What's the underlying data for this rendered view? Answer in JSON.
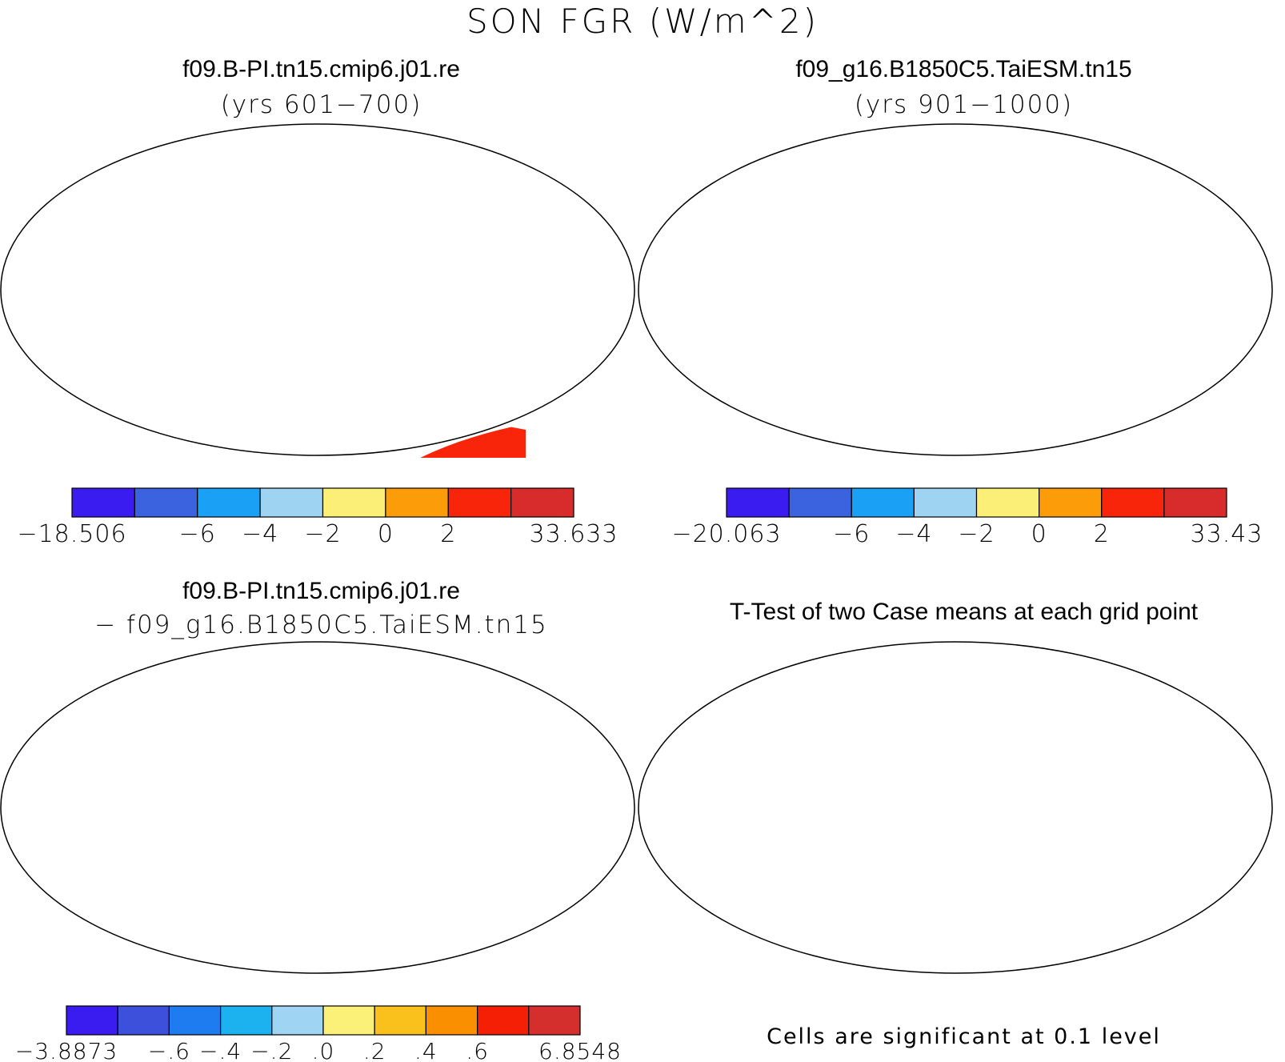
{
  "figure": {
    "title": "SON FGR (W/m^2)"
  },
  "panels": [
    {
      "id": "case1",
      "title": "f09.B-PI.tn15.cmip6.j01.re",
      "subtitle": "(yrs 601−700)",
      "colorbar": {
        "colors": [
          "#3b1cf0",
          "#3c63df",
          "#1aa0f5",
          "#9ed3f2",
          "#fbef78",
          "#fb9c08",
          "#f8250b",
          "#d72c2b"
        ],
        "labels": [
          "−18.506",
          "",
          "−6",
          "−4",
          "−2",
          "0",
          "2",
          "",
          "33.633"
        ]
      }
    },
    {
      "id": "case2",
      "title": "f09_g16.B1850C5.TaiESM.tn15",
      "subtitle": "(yrs 901−1000)",
      "colorbar": {
        "colors": [
          "#3b1cf0",
          "#3c63df",
          "#1aa0f5",
          "#9ed3f2",
          "#fbef78",
          "#fb9c08",
          "#f8250b",
          "#d72c2b"
        ],
        "labels": [
          "−20.063",
          "",
          "−6",
          "−4",
          "−2",
          "0",
          "2",
          "",
          "33.43"
        ]
      }
    },
    {
      "id": "difference",
      "title": "f09.B-PI.tn15.cmip6.j01.re",
      "subtitle": "− f09_g16.B1850C5.TaiESM.tn15",
      "colorbar": {
        "colors": [
          "#3b1cf0",
          "#3c50db",
          "#1e7bf0",
          "#1cb2f0",
          "#9fd4f2",
          "#fbf179",
          "#fac11c",
          "#fb8f02",
          "#f41f05",
          "#d42e2d"
        ],
        "labels": [
          "−3.8873",
          "",
          "−.6",
          "−.4",
          "−.2",
          ".0",
          ".2",
          ".4",
          ".6",
          "",
          "6.8548"
        ]
      }
    },
    {
      "id": "ttest",
      "title": "T-Test of two Case means at each grid point",
      "footnote": "Cells are significant at 0.1 level",
      "significance_color": "#f50f0f"
    }
  ]
}
